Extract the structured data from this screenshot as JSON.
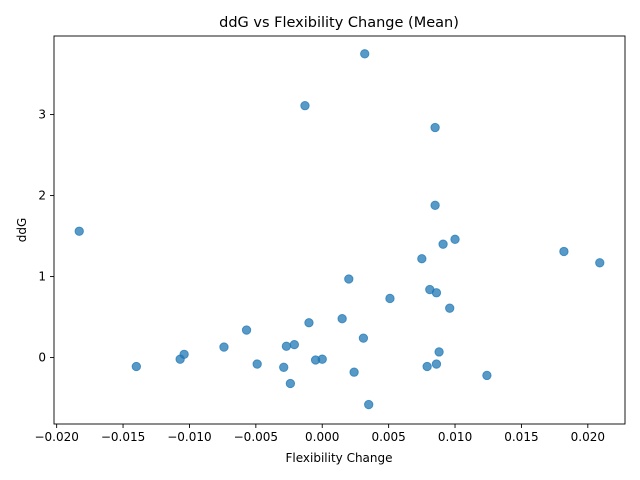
{
  "chart_data": {
    "type": "scatter",
    "title": "ddG vs Flexibility Change (Mean)",
    "xlabel": "Flexibility Change",
    "ylabel": "ddG",
    "xlim": [
      -0.0202,
      0.0228
    ],
    "ylim": [
      -0.82,
      3.97
    ],
    "xticks": [
      -0.02,
      -0.015,
      -0.01,
      -0.005,
      0.0,
      0.005,
      0.01,
      0.015,
      0.02
    ],
    "xtick_labels": [
      "−0.020",
      "−0.015",
      "−0.010",
      "−0.005",
      "0.000",
      "0.005",
      "0.010",
      "0.015",
      "0.020"
    ],
    "yticks": [
      0,
      1,
      2,
      3
    ],
    "ytick_labels": [
      "0",
      "1",
      "2",
      "3"
    ],
    "grid": false,
    "marker_color": "#1f77b4",
    "marker_alpha": 0.75,
    "x": [
      0.0032,
      -0.0013,
      0.0085,
      0.0085,
      -0.0183,
      0.01,
      0.0091,
      0.0182,
      0.0209,
      0.0075,
      0.002,
      0.0081,
      0.0086,
      0.0051,
      0.0096,
      0.0015,
      -0.001,
      -0.0057,
      0.0031,
      -0.0021,
      -0.0027,
      -0.0074,
      -0.0104,
      -0.0107,
      0.0088,
      -0.0005,
      0.0,
      -0.014,
      -0.0049,
      -0.0029,
      0.0079,
      0.0086,
      0.0024,
      0.0124,
      -0.0024,
      0.0035
    ],
    "y": [
      3.75,
      3.11,
      2.84,
      1.88,
      1.56,
      1.46,
      1.4,
      1.31,
      1.17,
      1.22,
      0.97,
      0.84,
      0.8,
      0.73,
      0.61,
      0.48,
      0.43,
      0.34,
      0.24,
      0.16,
      0.14,
      0.13,
      0.04,
      -0.02,
      0.07,
      -0.03,
      -0.02,
      -0.11,
      -0.08,
      -0.12,
      -0.11,
      -0.08,
      -0.18,
      -0.22,
      -0.32,
      -0.58
    ]
  }
}
